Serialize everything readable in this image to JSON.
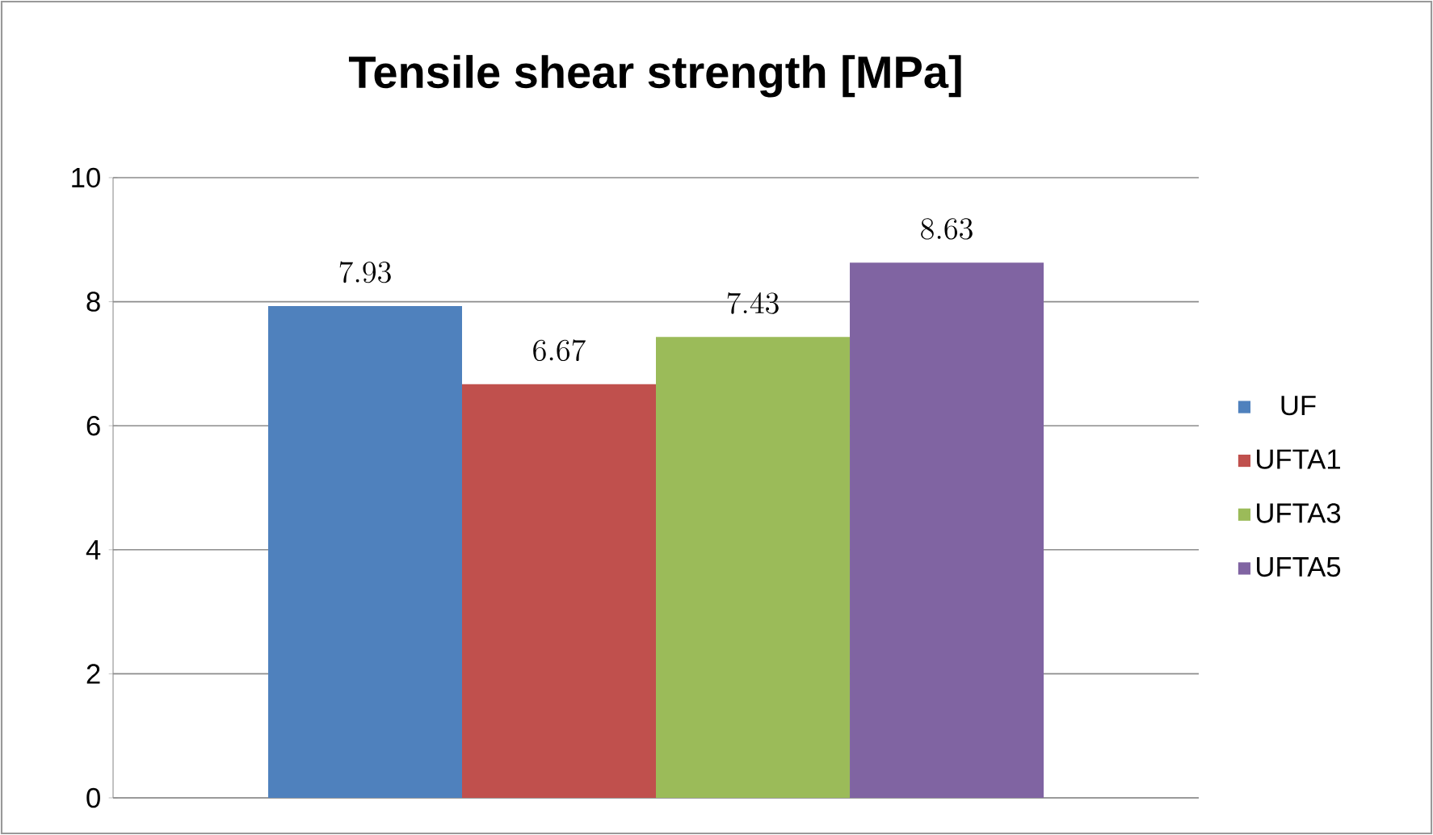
{
  "chart_data": {
    "type": "bar",
    "title": "Tensile shear strength [MPa]",
    "categories": [
      null
    ],
    "series": [
      {
        "name": "UF",
        "color": "#4f81bd",
        "values": [
          7.93
        ]
      },
      {
        "name": "UFTA1",
        "color": "#c0504d",
        "values": [
          6.67
        ]
      },
      {
        "name": "UFTA3",
        "color": "#9bbb59",
        "values": [
          7.43
        ]
      },
      {
        "name": "UFTA5",
        "color": "#8064a2",
        "values": [
          8.63
        ]
      }
    ],
    "ylim": [
      0,
      10
    ],
    "yticks": [
      0,
      2,
      4,
      6,
      8,
      10
    ],
    "grid": "y",
    "legend": "right",
    "data_labels": true
  }
}
